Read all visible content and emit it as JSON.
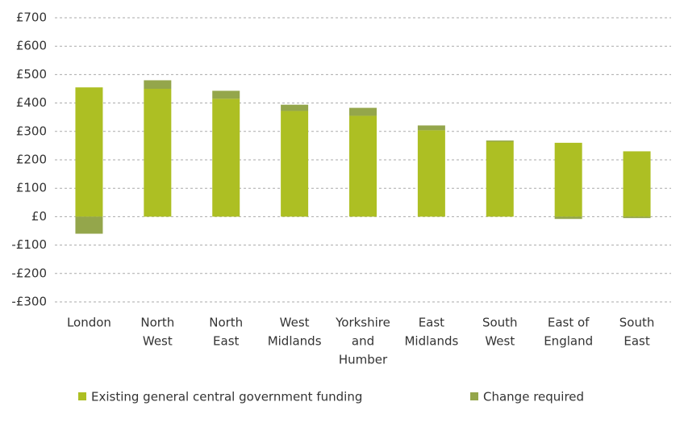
{
  "chart_data": {
    "type": "stacked_bar",
    "categories": [
      [
        "London"
      ],
      [
        "North",
        "West"
      ],
      [
        "North",
        "East"
      ],
      [
        "West",
        "Midlands"
      ],
      [
        "Yorkshire",
        "and",
        "Humber"
      ],
      [
        "East",
        "Midlands"
      ],
      [
        "South",
        "West"
      ],
      [
        "East of",
        "England"
      ],
      [
        "South",
        "East"
      ]
    ],
    "series": [
      {
        "name": "Existing general central government funding",
        "color": "#adbf23",
        "values": [
          455,
          450,
          415,
          372,
          355,
          304,
          264,
          260,
          230
        ]
      },
      {
        "name": "Change required",
        "color": "#94a64b",
        "values": [
          -60,
          30,
          28,
          22,
          28,
          17,
          4,
          -8,
          -5
        ]
      }
    ],
    "ylim": [
      -300,
      700
    ],
    "yticks": [
      {
        "value": -300,
        "label": "-£300"
      },
      {
        "value": -200,
        "label": "-£200"
      },
      {
        "value": -100,
        "label": "-£100"
      },
      {
        "value": 0,
        "label": "£0"
      },
      {
        "value": 100,
        "label": "£100"
      },
      {
        "value": 200,
        "label": "£200"
      },
      {
        "value": 300,
        "label": "£300"
      },
      {
        "value": 400,
        "label": "£400"
      },
      {
        "value": 500,
        "label": "£500"
      },
      {
        "value": 600,
        "label": "£600"
      },
      {
        "value": 700,
        "label": "£700"
      }
    ],
    "grid": true,
    "legend": "bottom"
  }
}
